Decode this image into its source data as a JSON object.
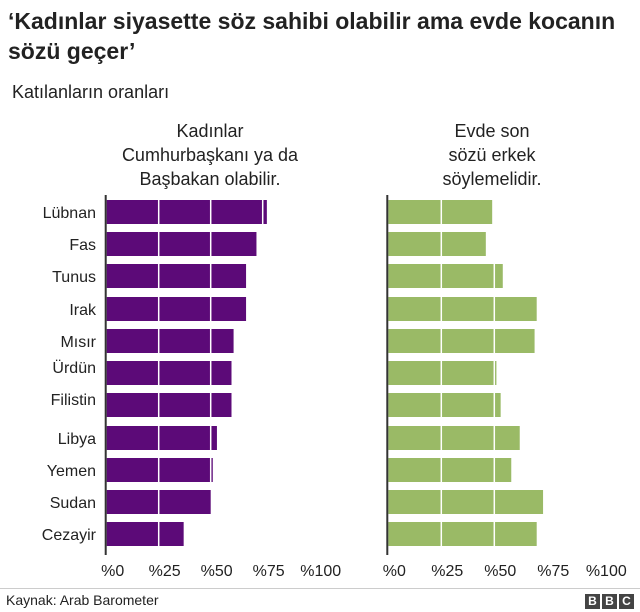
{
  "title": "‘Kadınlar siyasette söz sahibi olabilir ama evde kocanın sözü geçer’",
  "subtitle": "Katılanların oranları",
  "source": "Kaynak: Arab Barometer",
  "logo": "BBC",
  "chart_data": [
    {
      "type": "bar",
      "orientation": "horizontal",
      "title": "Kadınlar Cumhurbaşkanı ya da Başbakan olabilir.",
      "categories": [
        "Lübnan",
        "Fas",
        "Tunus",
        "Irak",
        "Mısır",
        "Ürdün",
        "Filistin",
        "Libya",
        "Yemen",
        "Sudan",
        "Cezayir"
      ],
      "values": [
        77,
        72,
        67,
        67,
        61,
        60,
        60,
        53,
        51,
        50,
        37
      ],
      "xlim": [
        0,
        100
      ],
      "ticks": [
        "%0",
        "%25",
        "%50",
        "%75",
        "%100"
      ],
      "tick_values": [
        0,
        25,
        50,
        75,
        100
      ],
      "color": "#5c0a78",
      "grid": "white lines at 25, 50, 75 inside bars"
    },
    {
      "type": "bar",
      "orientation": "horizontal",
      "title": "Evde son sözü erkek söylemelidir.",
      "categories": [
        "Lübnan",
        "Fas",
        "Tunus",
        "Irak",
        "Mısır",
        "Ürdün",
        "Filistin",
        "Libya",
        "Yemen",
        "Sudan",
        "Cezayir"
      ],
      "values": [
        49,
        46,
        54,
        70,
        69,
        51,
        53,
        62,
        58,
        73,
        70
      ],
      "xlim": [
        0,
        100
      ],
      "ticks": [
        "%0",
        "%25",
        "%50",
        "%75",
        "%100"
      ],
      "tick_values": [
        0,
        25,
        50,
        75,
        100
      ],
      "color": "#9aba66",
      "grid": "white lines at 25, 50, 75 inside bars"
    }
  ]
}
